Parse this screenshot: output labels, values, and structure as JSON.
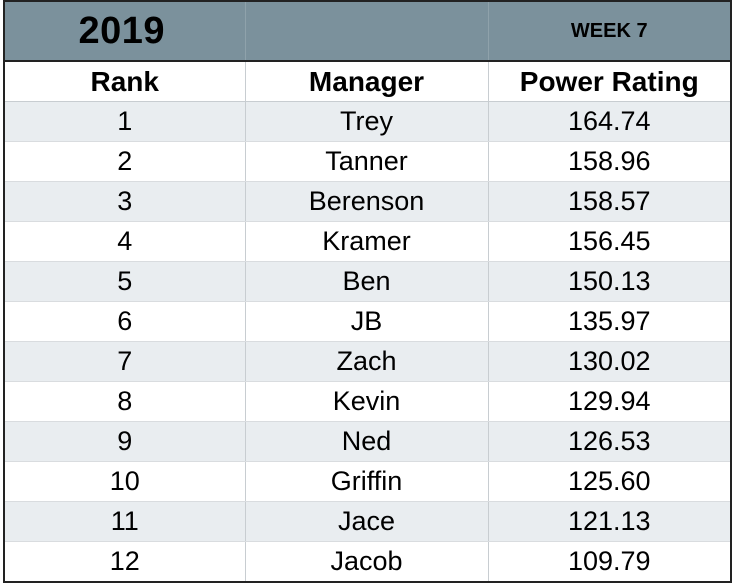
{
  "banner": {
    "year": "2019",
    "week": "WEEK 7"
  },
  "columns": {
    "rank": "Rank",
    "manager": "Manager",
    "power_rating": "Power Rating"
  },
  "rows": [
    {
      "rank": "1",
      "manager": "Trey",
      "power_rating": "164.74"
    },
    {
      "rank": "2",
      "manager": "Tanner",
      "power_rating": "158.96"
    },
    {
      "rank": "3",
      "manager": "Berenson",
      "power_rating": "158.57"
    },
    {
      "rank": "4",
      "manager": "Kramer",
      "power_rating": "156.45"
    },
    {
      "rank": "5",
      "manager": "Ben",
      "power_rating": "150.13"
    },
    {
      "rank": "6",
      "manager": "JB",
      "power_rating": "135.97"
    },
    {
      "rank": "7",
      "manager": "Zach",
      "power_rating": "130.02"
    },
    {
      "rank": "8",
      "manager": "Kevin",
      "power_rating": "129.94"
    },
    {
      "rank": "9",
      "manager": "Ned",
      "power_rating": "126.53"
    },
    {
      "rank": "10",
      "manager": "Griffin",
      "power_rating": "125.60"
    },
    {
      "rank": "11",
      "manager": "Jace",
      "power_rating": "121.13"
    },
    {
      "rank": "12",
      "manager": "Jacob",
      "power_rating": "109.79"
    }
  ],
  "colors": {
    "banner_bg": "#7b919c",
    "stripe_bg": "#e9edf0",
    "border": "#222222"
  }
}
